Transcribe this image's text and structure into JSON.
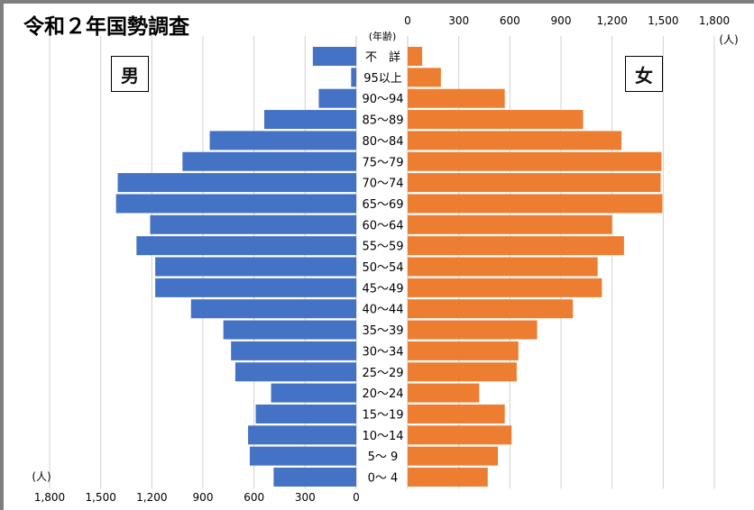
{
  "title": "令和２年国勢調査",
  "chart_data": {
    "type": "bar",
    "subtype": "population-pyramid",
    "orientation": "horizontal",
    "categories": [
      "不　詳",
      "95以上",
      "90～94",
      "85～89",
      "80～84",
      "75～79",
      "70～74",
      "65～69",
      "60～64",
      "55～59",
      "50～54",
      "45～49",
      "40～44",
      "35～39",
      "30～34",
      "25～29",
      "20～24",
      "15～19",
      "10～14",
      "5～ 9",
      "0～ 4"
    ],
    "category_axis_label": "(年齢)",
    "unit": "(人)",
    "series": [
      {
        "name": "男",
        "color": "#4472c4",
        "values": [
          255,
          30,
          220,
          540,
          860,
          1020,
          1400,
          1410,
          1210,
          1290,
          1180,
          1180,
          970,
          780,
          735,
          710,
          500,
          590,
          635,
          625,
          485
        ]
      },
      {
        "name": "女",
        "color": "#ed7d31",
        "values": [
          85,
          195,
          570,
          1030,
          1255,
          1490,
          1485,
          1495,
          1200,
          1270,
          1115,
          1140,
          970,
          760,
          650,
          640,
          420,
          570,
          610,
          530,
          470
        ]
      }
    ],
    "xlim": [
      0,
      1800
    ],
    "left_ticks": [
      "1,800",
      "1,500",
      "1,200",
      "900",
      "600",
      "300",
      "0"
    ],
    "right_ticks": [
      "0",
      "300",
      "600",
      "900",
      "1,200",
      "1,500",
      "1,800"
    ],
    "grid": true,
    "legend": "boxed labels top-left (男) and top-right (女)"
  }
}
